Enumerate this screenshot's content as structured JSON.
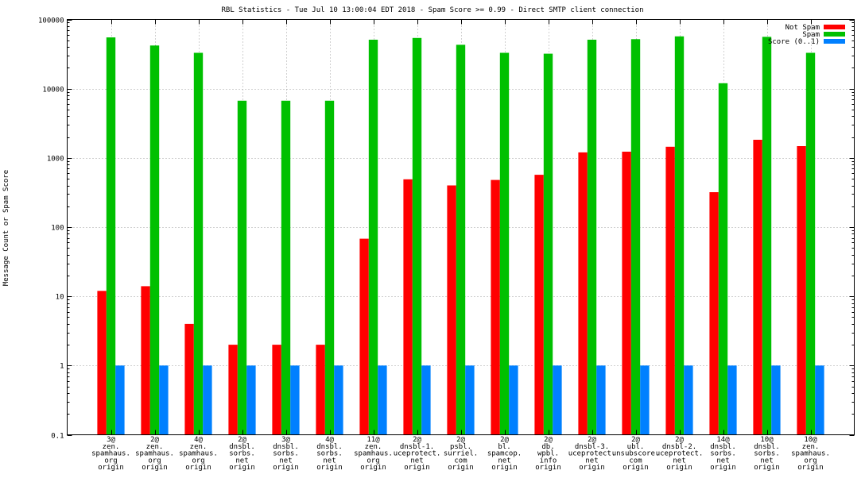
{
  "chart_data": {
    "type": "bar",
    "title": "RBL Statistics - Tue Jul 10 13:00:04 EDT 2018 - Spam Score >= 0.99 - Direct SMTP client connection",
    "xlabel": "",
    "ylabel": "Message Count or Spam Score",
    "yscale": "log",
    "ylim": [
      0.1,
      100000
    ],
    "yticks": [
      "0.1",
      "1",
      "10",
      "100",
      "1000",
      "10000",
      "100000"
    ],
    "grid": true,
    "legend_position": "top-right",
    "categories": [
      [
        "3@",
        "zen.",
        "spamhaus.",
        "org",
        "origin"
      ],
      [
        "2@",
        "zen.",
        "spamhaus.",
        "org",
        "origin"
      ],
      [
        "4@",
        "zen.",
        "spamhaus.",
        "org",
        "origin"
      ],
      [
        "2@",
        "dnsbl.",
        "sorbs.",
        "net",
        "origin"
      ],
      [
        "3@",
        "dnsbl.",
        "sorbs.",
        "net",
        "origin"
      ],
      [
        "4@",
        "dnsbl.",
        "sorbs.",
        "net",
        "origin"
      ],
      [
        "11@",
        "zen.",
        "spamhaus.",
        "org",
        "origin"
      ],
      [
        "2@",
        "dnsbl-1.",
        "uceprotect.",
        "net",
        "origin"
      ],
      [
        "2@",
        "psbl.",
        "surriel.",
        "com",
        "origin"
      ],
      [
        "2@",
        "bl.",
        "spamcop.",
        "net",
        "origin"
      ],
      [
        "2@",
        "db.",
        "wpbl.",
        "info",
        "origin"
      ],
      [
        "2@",
        "dnsbl-3.",
        "uceprotect.",
        "net",
        "origin"
      ],
      [
        "2@",
        "ubl.",
        "unsubscore.",
        "com",
        "origin"
      ],
      [
        "2@",
        "dnsbl-2.",
        "uceprotect.",
        "net",
        "origin"
      ],
      [
        "14@",
        "dnsbl.",
        "sorbs.",
        "net",
        "origin"
      ],
      [
        "10@",
        "dnsbl.",
        "sorbs.",
        "net",
        "origin"
      ],
      [
        "10@",
        "zen.",
        "spamhaus.",
        "org",
        "origin"
      ]
    ],
    "series": [
      {
        "name": "Not Spam",
        "color": "#ff0000",
        "values": [
          12,
          14,
          4,
          2,
          2,
          2,
          68,
          490,
          400,
          480,
          570,
          1200,
          1230,
          1450,
          320,
          1830,
          1480
        ]
      },
      {
        "name": "Spam",
        "color": "#00c000",
        "values": [
          55000,
          42000,
          33000,
          6700,
          6700,
          6700,
          51000,
          54000,
          43000,
          33000,
          32000,
          51000,
          52000,
          57000,
          12000,
          56000,
          33000
        ]
      },
      {
        "name": "Score (0..1)",
        "color": "#0080ff",
        "values": [
          1,
          1,
          1,
          1,
          1,
          1,
          1,
          1,
          1,
          1,
          1,
          1,
          1,
          1,
          1,
          1,
          1
        ]
      }
    ]
  }
}
